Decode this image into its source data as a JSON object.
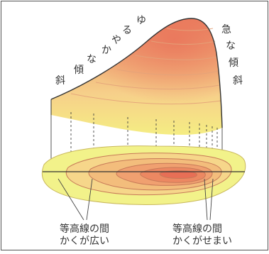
{
  "slope_labels": {
    "gentle": [
      "斜",
      "傾",
      "な",
      "か",
      "や",
      "る",
      "ゆ"
    ],
    "steep": [
      "急",
      "な",
      "傾",
      "斜"
    ]
  },
  "bottom_labels": {
    "wide_line1": "等高線の間",
    "wide_line2": "かくが広い",
    "narrow_line1": "等高線の間",
    "narrow_line2": "かくがせまい"
  },
  "colors": {
    "outer": "#f2f28a",
    "band2": "#f6d78a",
    "band3": "#f3bf7e",
    "band4": "#f0a170",
    "band5": "#ec8862",
    "peak": "#e76f56",
    "outline": "#333333",
    "contour": "#c77a58"
  }
}
